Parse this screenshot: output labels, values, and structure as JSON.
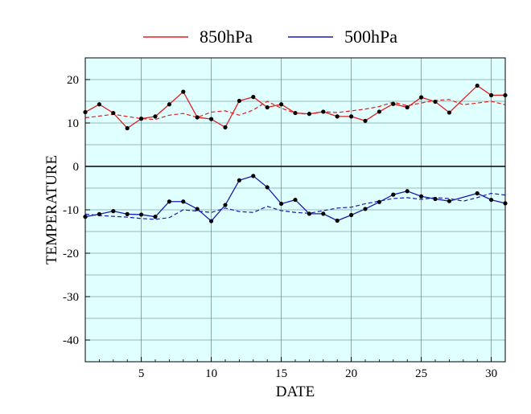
{
  "chart_data": {
    "type": "line",
    "title": "",
    "xlabel": "DATE",
    "ylabel": "TEMPERATURE",
    "xlim": [
      1,
      31
    ],
    "ylim": [
      -45,
      25
    ],
    "x_ticks": [
      5,
      10,
      15,
      20,
      25,
      30
    ],
    "y_ticks": [
      20,
      10,
      0,
      -10,
      -20,
      -30,
      -40
    ],
    "grid": true,
    "zero_line": true,
    "legend_position": "top",
    "plot_background": "#e0ffff",
    "x": [
      1,
      2,
      3,
      4,
      5,
      6,
      7,
      8,
      9,
      10,
      11,
      12,
      13,
      14,
      15,
      16,
      17,
      18,
      19,
      20,
      21,
      22,
      23,
      24,
      25,
      26,
      27,
      28,
      29,
      30,
      31
    ],
    "series": [
      {
        "name": "850hPa",
        "color": "#e02020",
        "values": [
          12.5,
          14.3,
          12.3,
          8.8,
          11.0,
          11.5,
          14.3,
          17.2,
          11.3,
          10.9,
          9.0,
          15.1,
          16.0,
          13.6,
          14.3,
          12.3,
          12.1,
          12.6,
          11.5,
          11.5,
          10.5,
          12.6,
          14.4,
          13.6,
          15.9,
          14.9,
          12.4,
          null,
          18.6,
          16.4,
          16.4
        ],
        "normal": [
          11.2,
          11.6,
          12.0,
          11.5,
          11.0,
          10.8,
          11.8,
          12.2,
          11.3,
          12.5,
          12.8,
          11.8,
          13.0,
          15.0,
          13.4,
          12.3,
          12.0,
          12.6,
          12.4,
          12.8,
          13.2,
          13.8,
          14.8,
          14.0,
          14.6,
          15.2,
          15.4,
          14.2,
          14.6,
          15.0,
          14.2
        ]
      },
      {
        "name": "500hPa",
        "color": "#1a1ab0",
        "values": [
          -11.6,
          -11.0,
          -10.3,
          -11.0,
          -11.1,
          -11.6,
          -8.1,
          -8.1,
          -9.8,
          -12.6,
          -8.9,
          -3.2,
          -2.2,
          -4.8,
          -8.6,
          -7.7,
          -10.9,
          -10.9,
          -12.5,
          -11.2,
          -9.8,
          -8.2,
          -6.5,
          -5.7,
          -6.9,
          -7.5,
          -8.0,
          null,
          -6.2,
          -7.7,
          -8.5
        ],
        "normal": [
          -11.0,
          -11.3,
          -11.5,
          -11.7,
          -12.0,
          -12.2,
          -11.8,
          -10.0,
          -10.3,
          -10.6,
          -9.6,
          -10.4,
          -10.6,
          -9.2,
          -10.2,
          -10.6,
          -10.8,
          -10.2,
          -9.6,
          -9.4,
          -8.6,
          -8.0,
          -7.4,
          -7.2,
          -7.6,
          -7.2,
          -7.4,
          -8.0,
          -7.2,
          -6.2,
          -6.6
        ]
      }
    ]
  }
}
